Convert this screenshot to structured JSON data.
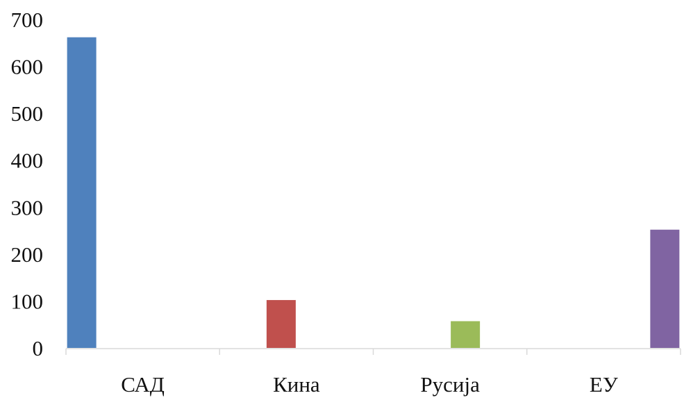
{
  "chart_data": {
    "type": "bar",
    "title": "",
    "xlabel": "",
    "ylabel": "",
    "categories": [
      "САД",
      "Кина",
      "Русија",
      "ЕУ"
    ],
    "values": [
      662,
      102,
      57,
      252
    ],
    "colors": [
      "#4F81BD",
      "#C0504D",
      "#9BBB59",
      "#8064A2"
    ],
    "ylim": [
      0,
      700
    ],
    "yticks": [
      0,
      100,
      200,
      300,
      400,
      500,
      600,
      700
    ],
    "grid": false,
    "legend": "none"
  }
}
